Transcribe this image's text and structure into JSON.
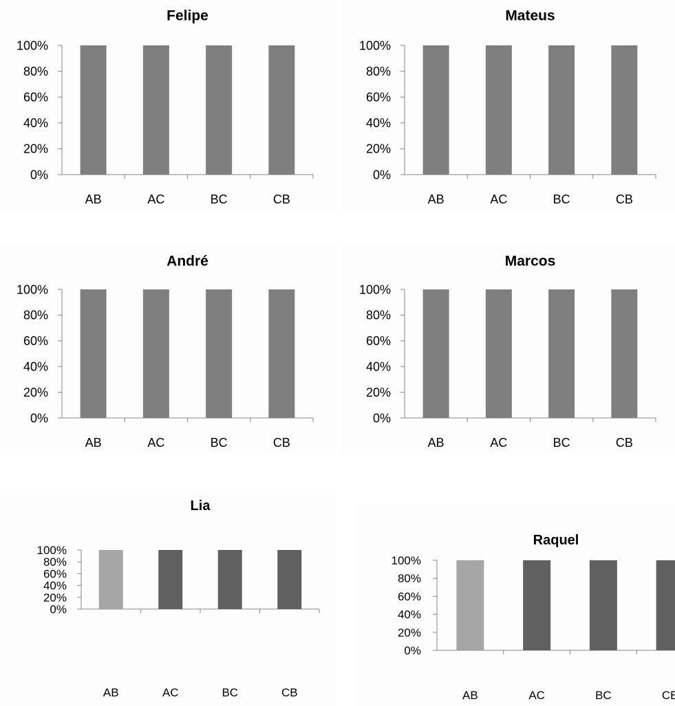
{
  "chart_data": [
    {
      "type": "bar",
      "title": "Felipe",
      "categories": [
        "AB",
        "AC",
        "BC",
        "CB"
      ],
      "values": [
        100,
        100,
        100,
        100
      ],
      "ylim": [
        0,
        100
      ],
      "yticks": [
        "0%",
        "20%",
        "40%",
        "60%",
        "80%",
        "100%"
      ],
      "bar_colors": [
        "#7f7f7f",
        "#7f7f7f",
        "#7f7f7f",
        "#7f7f7f"
      ],
      "grid": false,
      "legend": "none"
    },
    {
      "type": "bar",
      "title": "Mateus",
      "categories": [
        "AB",
        "AC",
        "BC",
        "CB"
      ],
      "values": [
        100,
        100,
        100,
        100
      ],
      "ylim": [
        0,
        100
      ],
      "yticks": [
        "0%",
        "20%",
        "40%",
        "60%",
        "80%",
        "100%"
      ],
      "bar_colors": [
        "#7f7f7f",
        "#7f7f7f",
        "#7f7f7f",
        "#7f7f7f"
      ],
      "grid": false,
      "legend": "none"
    },
    {
      "type": "bar",
      "title": "André",
      "categories": [
        "AB",
        "AC",
        "BC",
        "CB"
      ],
      "values": [
        100,
        100,
        100,
        100
      ],
      "ylim": [
        0,
        100
      ],
      "yticks": [
        "0%",
        "20%",
        "40%",
        "60%",
        "80%",
        "100%"
      ],
      "bar_colors": [
        "#7f7f7f",
        "#7f7f7f",
        "#7f7f7f",
        "#7f7f7f"
      ],
      "grid": false,
      "legend": "none"
    },
    {
      "type": "bar",
      "title": "Marcos",
      "categories": [
        "AB",
        "AC",
        "BC",
        "CB"
      ],
      "values": [
        100,
        100,
        100,
        100
      ],
      "ylim": [
        0,
        100
      ],
      "yticks": [
        "0%",
        "20%",
        "40%",
        "60%",
        "80%",
        "100%"
      ],
      "bar_colors": [
        "#7f7f7f",
        "#7f7f7f",
        "#7f7f7f",
        "#7f7f7f"
      ],
      "grid": false,
      "legend": "none"
    },
    {
      "type": "bar",
      "title": "Lia",
      "categories": [
        "AB",
        "AC",
        "BC",
        "CB"
      ],
      "values": [
        100,
        100,
        100,
        100
      ],
      "ylim": [
        0,
        100
      ],
      "yticks": [
        "0%",
        "20%",
        "40%",
        "60%",
        "80%",
        "100%"
      ],
      "bar_colors": [
        "#a6a6a6",
        "#606060",
        "#606060",
        "#606060"
      ],
      "grid": false,
      "legend": "none"
    },
    {
      "type": "bar",
      "title": "Raquel",
      "categories": [
        "AB",
        "AC",
        "BC",
        "CB"
      ],
      "values": [
        100,
        100,
        100,
        100
      ],
      "ylim": [
        0,
        100
      ],
      "yticks": [
        "0%",
        "20%",
        "40%",
        "60%",
        "80%",
        "100%"
      ],
      "bar_colors": [
        "#a6a6a6",
        "#606060",
        "#606060",
        "#606060"
      ],
      "grid": false,
      "legend": "none"
    }
  ]
}
